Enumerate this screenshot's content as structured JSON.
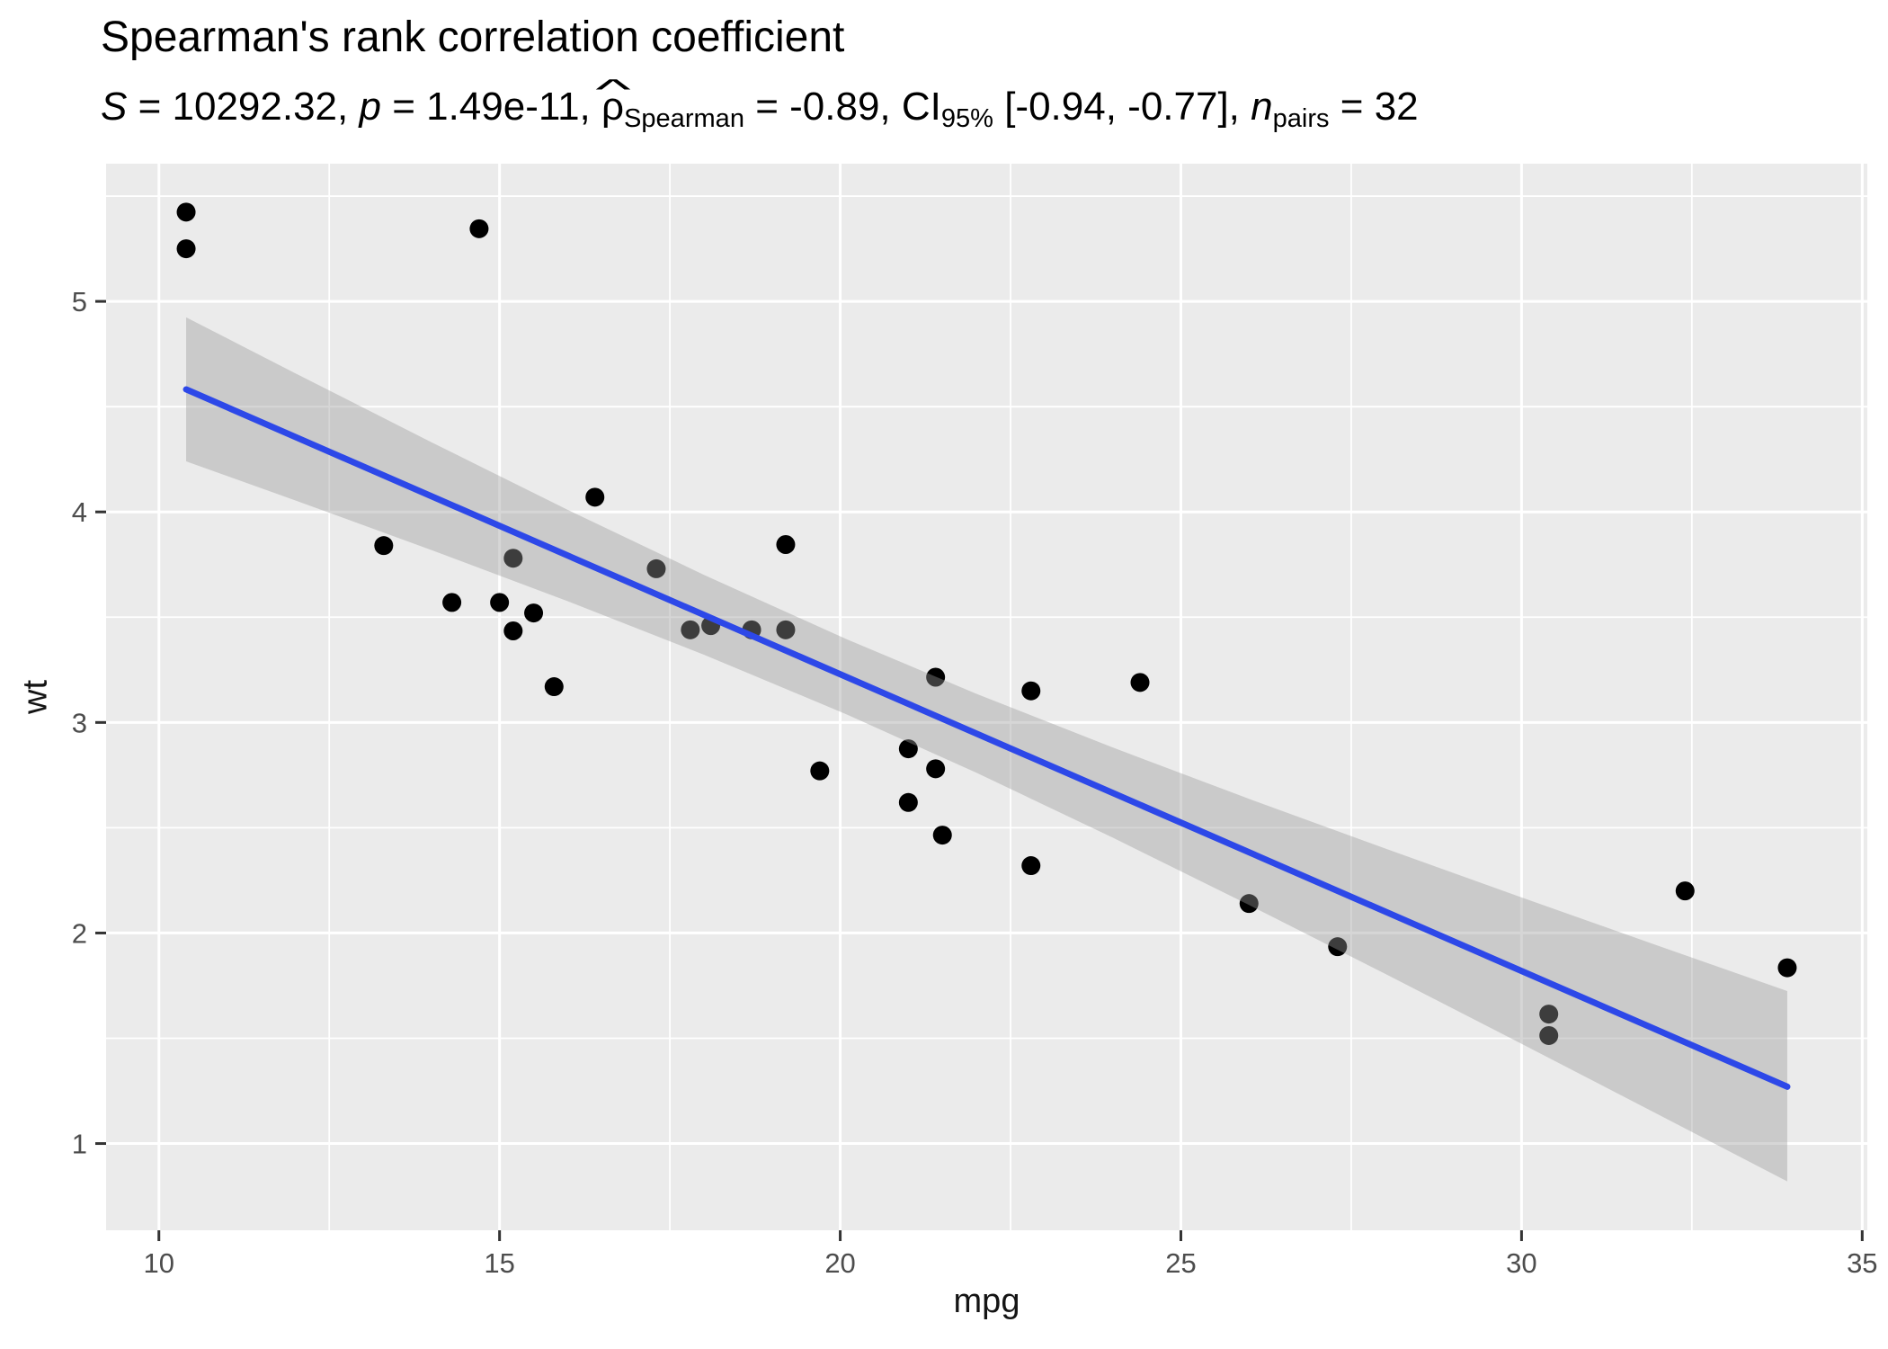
{
  "title": "Spearman's rank correlation coefficient",
  "subtitle_parts": [
    {
      "t": "S",
      "s": "it"
    },
    {
      "t": " = 10292.32, "
    },
    {
      "t": "p",
      "s": "it"
    },
    {
      "t": " = 1.49e-11, "
    },
    {
      "t": "ρ",
      "s": "hat"
    },
    {
      "t": "Spearman",
      "s": "sub"
    },
    {
      "t": " = -0.89, CI"
    },
    {
      "t": "95%",
      "s": "sub"
    },
    {
      "t": " [-0.94, -0.77], "
    },
    {
      "t": "n",
      "s": "it"
    },
    {
      "t": "pairs",
      "s": "sub"
    },
    {
      "t": " = 32"
    }
  ],
  "stats": {
    "S": "10292.32",
    "p": "1.49e-11",
    "rho_spearman": "-0.89",
    "ci_level": "95%",
    "ci_low": "-0.94",
    "ci_high": "-0.77",
    "n_pairs": "32"
  },
  "chart_data": {
    "type": "scatter",
    "title": "Spearman's rank correlation coefficient",
    "xlabel": "mpg",
    "ylabel": "wt",
    "x_range": [
      9.225,
      35.075
    ],
    "y_range": [
      0.588,
      5.654
    ],
    "x_ticks": [
      10,
      15,
      20,
      25,
      30,
      35
    ],
    "y_ticks": [
      1,
      2,
      3,
      4,
      5
    ],
    "x_minor_ticks": [
      12.5,
      17.5,
      22.5,
      27.5,
      32.5
    ],
    "y_minor_ticks": [
      1.5,
      2.5,
      3.5,
      4.5,
      5.5
    ],
    "grid": true,
    "legend": false,
    "points": [
      [
        21.0,
        2.62
      ],
      [
        21.0,
        2.875
      ],
      [
        22.8,
        2.32
      ],
      [
        21.4,
        3.215
      ],
      [
        18.7,
        3.44
      ],
      [
        18.1,
        3.46
      ],
      [
        14.3,
        3.57
      ],
      [
        24.4,
        3.19
      ],
      [
        22.8,
        3.15
      ],
      [
        19.2,
        3.44
      ],
      [
        17.8,
        3.44
      ],
      [
        16.4,
        4.07
      ],
      [
        17.3,
        3.73
      ],
      [
        15.2,
        3.78
      ],
      [
        10.4,
        5.25
      ],
      [
        10.4,
        5.424
      ],
      [
        14.7,
        5.345
      ],
      [
        32.4,
        2.2
      ],
      [
        30.4,
        1.615
      ],
      [
        33.9,
        1.835
      ],
      [
        21.5,
        2.465
      ],
      [
        15.5,
        3.52
      ],
      [
        15.2,
        3.435
      ],
      [
        13.3,
        3.84
      ],
      [
        19.2,
        3.845
      ],
      [
        27.3,
        1.935
      ],
      [
        26.0,
        2.14
      ],
      [
        30.4,
        1.513
      ],
      [
        15.8,
        3.17
      ],
      [
        19.7,
        2.77
      ],
      [
        15.0,
        3.57
      ],
      [
        21.4,
        2.78
      ]
    ],
    "regression_line": {
      "x": [
        10.4,
        33.9
      ],
      "y": [
        4.582,
        1.27
      ]
    },
    "ribbon": {
      "x": [
        10.4,
        12.0,
        14.0,
        16.0,
        18.0,
        20.09,
        22.0,
        24.0,
        26.0,
        28.0,
        30.0,
        32.0,
        33.9
      ],
      "upper": [
        4.924,
        4.659,
        4.331,
        4.01,
        3.701,
        3.396,
        3.136,
        2.881,
        2.637,
        2.401,
        2.169,
        1.94,
        1.724
      ],
      "lower": [
        4.24,
        4.055,
        3.819,
        3.576,
        3.322,
        3.039,
        2.761,
        2.453,
        2.133,
        1.806,
        1.474,
        1.139,
        0.82
      ]
    },
    "colors": {
      "panel_background": "#EBEBEB",
      "grid": "#FFFFFF",
      "point": "#000000",
      "ribbon_fill": "rgba(153,153,153,0.40)",
      "line": "#2D48E8",
      "tick_label": "#4D4D4D",
      "tick_mark": "#333333",
      "axis_title": "#141414"
    }
  }
}
